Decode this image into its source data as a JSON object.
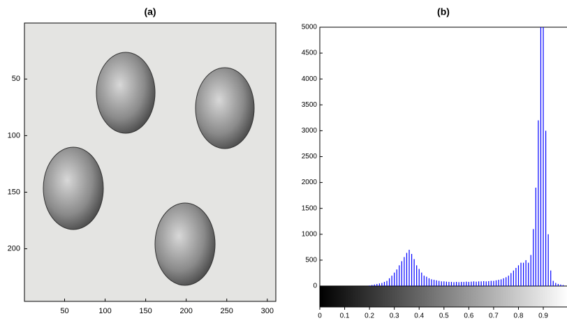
{
  "chart_data": [
    {
      "type": "image",
      "title": "(a)",
      "xlim": [
        0.5,
        310.5
      ],
      "ylim": [
        0.5,
        246.5
      ],
      "xticks": [
        50,
        100,
        150,
        200,
        250,
        300
      ],
      "yticks": [
        50,
        100,
        150,
        200
      ]
    },
    {
      "type": "stem",
      "title": "(b)",
      "color": "#0000ff",
      "xlim": [
        0,
        1
      ],
      "ylim": [
        0,
        5000
      ],
      "xticks": [
        0,
        0.1,
        0.2,
        0.3,
        0.4,
        0.5,
        0.6,
        0.7,
        0.8,
        0.9
      ],
      "yticks": [
        0,
        500,
        1000,
        1500,
        2000,
        2500,
        3000,
        3500,
        4000,
        4500,
        5000
      ],
      "x": [
        0.2,
        0.21,
        0.22,
        0.23,
        0.24,
        0.25,
        0.26,
        0.27,
        0.28,
        0.29,
        0.3,
        0.31,
        0.32,
        0.33,
        0.34,
        0.35,
        0.36,
        0.37,
        0.38,
        0.39,
        0.4,
        0.41,
        0.42,
        0.43,
        0.44,
        0.45,
        0.46,
        0.47,
        0.48,
        0.49,
        0.5,
        0.51,
        0.52,
        0.53,
        0.54,
        0.55,
        0.56,
        0.57,
        0.58,
        0.59,
        0.6,
        0.61,
        0.62,
        0.63,
        0.64,
        0.65,
        0.66,
        0.67,
        0.68,
        0.69,
        0.7,
        0.71,
        0.72,
        0.73,
        0.74,
        0.75,
        0.76,
        0.77,
        0.78,
        0.79,
        0.8,
        0.81,
        0.82,
        0.83,
        0.84,
        0.85,
        0.86,
        0.87,
        0.88,
        0.89,
        0.9,
        0.91,
        0.92,
        0.93,
        0.94,
        0.95,
        0.96,
        0.97,
        0.98
      ],
      "values": [
        10,
        20,
        30,
        40,
        50,
        60,
        80,
        100,
        150,
        200,
        260,
        320,
        400,
        480,
        560,
        640,
        700,
        620,
        520,
        400,
        330,
        260,
        200,
        180,
        150,
        130,
        120,
        110,
        100,
        90,
        90,
        85,
        80,
        80,
        75,
        80,
        75,
        80,
        80,
        85,
        80,
        85,
        90,
        85,
        90,
        90,
        95,
        90,
        95,
        100,
        100,
        110,
        120,
        130,
        150,
        170,
        200,
        250,
        300,
        350,
        400,
        450,
        450,
        500,
        450,
        600,
        1100,
        1900,
        3200,
        5000,
        5000,
        3000,
        1000,
        300,
        100,
        60,
        40,
        30,
        20
      ]
    }
  ]
}
